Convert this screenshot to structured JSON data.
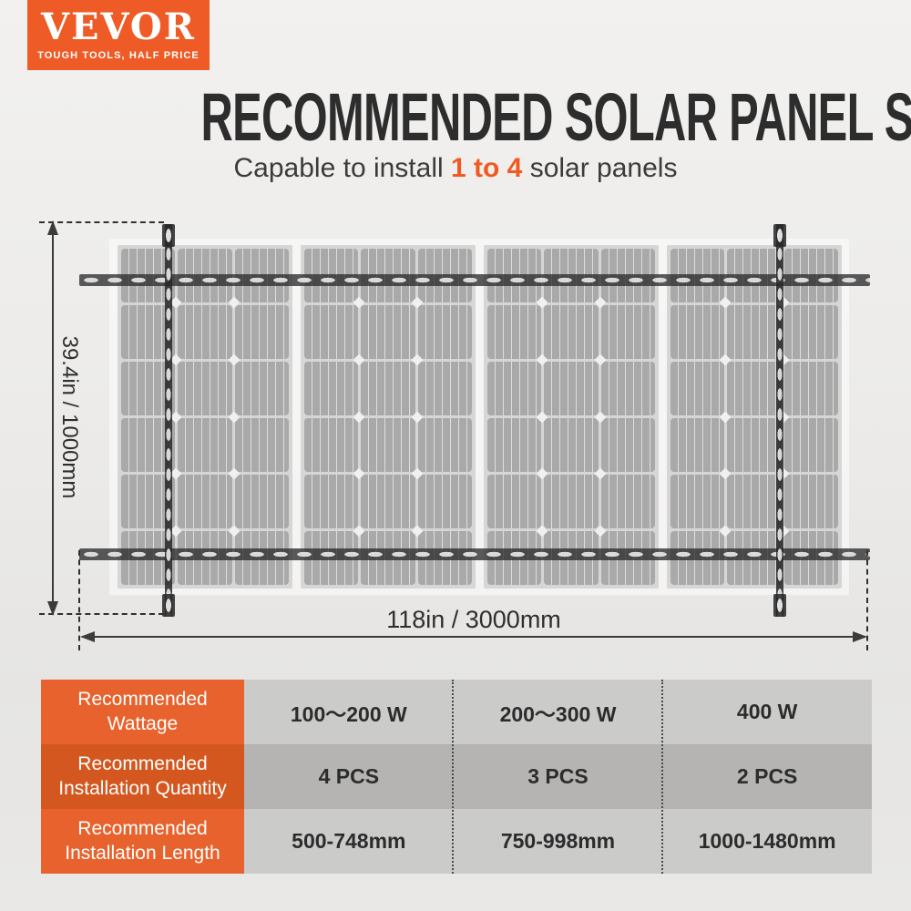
{
  "brand": {
    "name": "VEVOR",
    "tagline": "TOUGH TOOLS, HALF PRICE",
    "bg_color": "#ee5b26"
  },
  "header": {
    "title": "RECOMMENDED SOLAR PANEL SIZE",
    "subtitle_prefix": "Capable to install ",
    "subtitle_highlight": "1 to 4",
    "subtitle_suffix": " solar panels",
    "highlight_color": "#f05a22"
  },
  "diagram": {
    "panel_count": 4,
    "cell_cols": 3,
    "cell_rows": 6,
    "height_label": "39.4in / 1000mm",
    "width_label": "118in / 3000mm",
    "rail_color": "rgba(45,45,45,0.78)",
    "bracket_color": "rgba(38,38,38,0.86)"
  },
  "table": {
    "rows": [
      {
        "label": "Recommended Wattage",
        "values": [
          "100～200 W",
          "200～300 W",
          "400 W"
        ]
      },
      {
        "label": "Recommended Installation Quantity",
        "values": [
          "4 PCS",
          "3 PCS",
          "2 PCS"
        ]
      },
      {
        "label": "Recommended Installation Length",
        "values": [
          "500-748mm",
          "750-998mm",
          "1000-1480mm"
        ]
      }
    ],
    "label_colors": [
      "#e8622d",
      "#d4571f",
      "#e8622d"
    ],
    "value_colors": [
      "#cbcbca",
      "#b5b4b3",
      "#cbcbca"
    ]
  }
}
